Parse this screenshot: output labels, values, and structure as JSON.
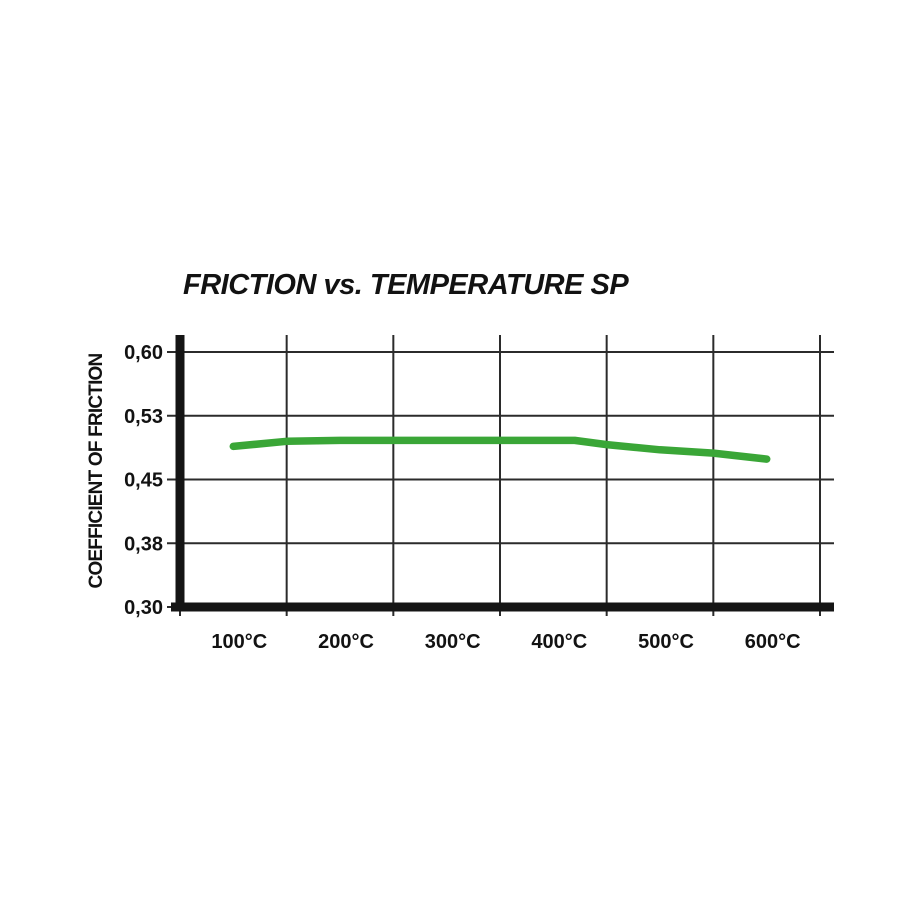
{
  "chart_data": {
    "type": "line",
    "title": "FRICTION vs. TEMPERATURE SP",
    "ylabel": "COEFFICIENT OF FRICTION",
    "xlabel": "",
    "x_tick_labels": [
      "100°C",
      "200°C",
      "300°C",
      "400°C",
      "500°C",
      "600°C"
    ],
    "y_tick_labels": [
      "0,60",
      "0,53",
      "0,45",
      "0,38",
      "0,30"
    ],
    "y_tick_values": [
      0.6,
      0.525,
      0.45,
      0.375,
      0.3
    ],
    "x_axis_range_degC": [
      50,
      650
    ],
    "ylim": [
      0.3,
      0.6
    ],
    "grid": true,
    "legend": "none",
    "colors": {
      "line_green": "#3aa637",
      "grid_color": "#2b2b2b",
      "axis_color": "#151515",
      "text_color": "#121212",
      "background": "#ffffff"
    },
    "series": [
      {
        "name": "SP",
        "color": "#3aa637",
        "points": [
          {
            "temp_c": 100,
            "mu": 0.489
          },
          {
            "temp_c": 150,
            "mu": 0.495
          },
          {
            "temp_c": 200,
            "mu": 0.496
          },
          {
            "temp_c": 250,
            "mu": 0.496
          },
          {
            "temp_c": 300,
            "mu": 0.496
          },
          {
            "temp_c": 350,
            "mu": 0.496
          },
          {
            "temp_c": 400,
            "mu": 0.496
          },
          {
            "temp_c": 420,
            "mu": 0.496
          },
          {
            "temp_c": 450,
            "mu": 0.491
          },
          {
            "temp_c": 500,
            "mu": 0.485
          },
          {
            "temp_c": 550,
            "mu": 0.481
          },
          {
            "temp_c": 600,
            "mu": 0.474
          }
        ]
      }
    ]
  }
}
